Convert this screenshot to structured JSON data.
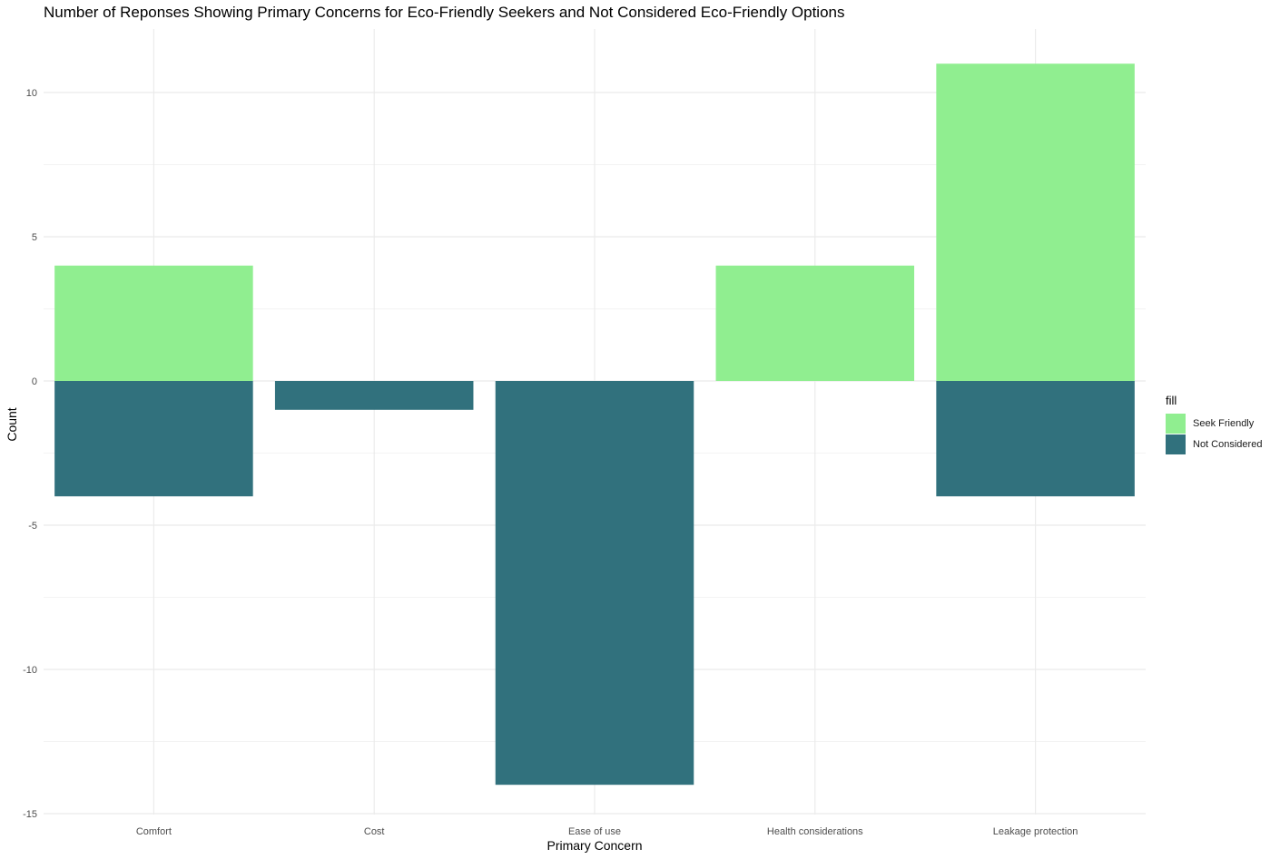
{
  "chart_data": {
    "type": "bar",
    "stacked": true,
    "title": "Number of Reponses Showing Primary Concerns for Eco-Friendly Seekers and Not Considered Eco-Friendly Options",
    "xlabel": "Primary Concern",
    "ylabel": "Count",
    "categories": [
      "Comfort",
      "Cost",
      "Ease of use",
      "Health considerations",
      "Leakage protection"
    ],
    "series": [
      {
        "name": "Seek Friendly",
        "values": [
          4,
          0,
          0,
          4,
          11
        ],
        "color": "#90ee90"
      },
      {
        "name": "Not Considered",
        "values": [
          -4,
          -1,
          -14,
          0,
          -4
        ],
        "color": "#31717d"
      }
    ],
    "ylim": [
      -15,
      12.25
    ],
    "yticks": [
      -15,
      -10,
      -5,
      0,
      5,
      10
    ],
    "grid": true,
    "legend": {
      "title": "fill",
      "position": "right"
    }
  }
}
